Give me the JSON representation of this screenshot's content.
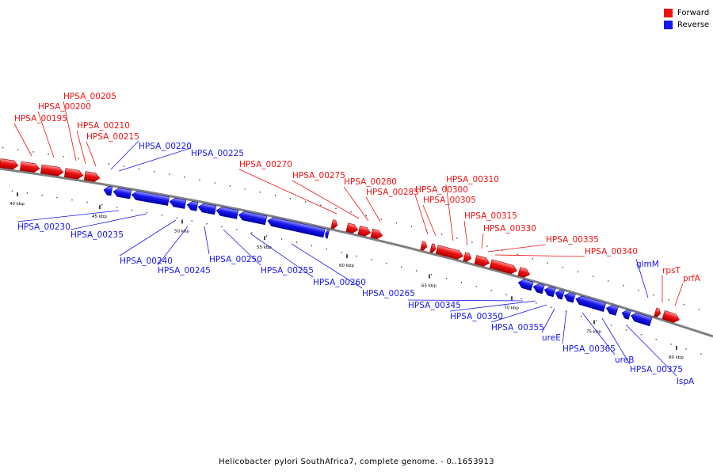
{
  "title": "Helicobacter pylori SouthAfrica7, complete genome. - 0..1653913",
  "colors": {
    "forward": "#ee1111",
    "reverse": "#1616ee",
    "backbone": "#808080"
  },
  "legend": [
    {
      "label": "Forward",
      "strand": "forward"
    },
    {
      "label": "Reverse",
      "strand": "reverse"
    }
  ],
  "scale_ticks": [
    {
      "label": "40 kbp",
      "kb": 40
    },
    {
      "label": "45 kbp",
      "kb": 45
    },
    {
      "label": "50 kbp",
      "kb": 50
    },
    {
      "label": "55 kbp",
      "kb": 55
    },
    {
      "label": "60 kbp",
      "kb": 60
    },
    {
      "label": "65 kbp",
      "kb": 65
    },
    {
      "label": "70 kbp",
      "kb": 70
    },
    {
      "label": "75 kbp",
      "kb": 75
    },
    {
      "label": "80 kbp",
      "kb": 80
    }
  ],
  "genes": [
    {
      "label": "HPSA_00195",
      "strand": "forward"
    },
    {
      "label": "HPSA_00200",
      "strand": "forward"
    },
    {
      "label": "HPSA_00205",
      "strand": "forward"
    },
    {
      "label": "HPSA_00210",
      "strand": "forward"
    },
    {
      "label": "HPSA_00215",
      "strand": "forward"
    },
    {
      "label": "HPSA_00220",
      "strand": "reverse"
    },
    {
      "label": "HPSA_00225",
      "strand": "reverse"
    },
    {
      "label": "HPSA_00230",
      "strand": "reverse"
    },
    {
      "label": "HPSA_00235",
      "strand": "reverse"
    },
    {
      "label": "HPSA_00240",
      "strand": "reverse"
    },
    {
      "label": "HPSA_00245",
      "strand": "reverse"
    },
    {
      "label": "HPSA_00250",
      "strand": "reverse"
    },
    {
      "label": "HPSA_00255",
      "strand": "reverse"
    },
    {
      "label": "HPSA_00260",
      "strand": "reverse"
    },
    {
      "label": "HPSA_00265",
      "strand": "reverse"
    },
    {
      "label": "HPSA_00270",
      "strand": "forward"
    },
    {
      "label": "HPSA_00275",
      "strand": "forward"
    },
    {
      "label": "HPSA_00280",
      "strand": "forward"
    },
    {
      "label": "HPSA_00285",
      "strand": "forward"
    },
    {
      "label": "HPSA_00300",
      "strand": "forward"
    },
    {
      "label": "HPSA_00305",
      "strand": "forward"
    },
    {
      "label": "HPSA_00310",
      "strand": "forward"
    },
    {
      "label": "HPSA_00315",
      "strand": "forward"
    },
    {
      "label": "HPSA_00330",
      "strand": "forward"
    },
    {
      "label": "HPSA_00335",
      "strand": "forward"
    },
    {
      "label": "HPSA_00340",
      "strand": "forward"
    },
    {
      "label": "HPSA_00345",
      "strand": "reverse"
    },
    {
      "label": "HPSA_00350",
      "strand": "reverse"
    },
    {
      "label": "HPSA_00355",
      "strand": "reverse"
    },
    {
      "label": "ureE",
      "strand": "reverse"
    },
    {
      "label": "HPSA_00365",
      "strand": "reverse"
    },
    {
      "label": "ureB",
      "strand": "reverse"
    },
    {
      "label": "HPSA_00375",
      "strand": "reverse"
    },
    {
      "label": "lspA",
      "strand": "reverse"
    },
    {
      "label": "glmM",
      "strand": "reverse"
    },
    {
      "label": "rpsT",
      "strand": "forward"
    },
    {
      "label": "prfA",
      "strand": "forward"
    }
  ]
}
